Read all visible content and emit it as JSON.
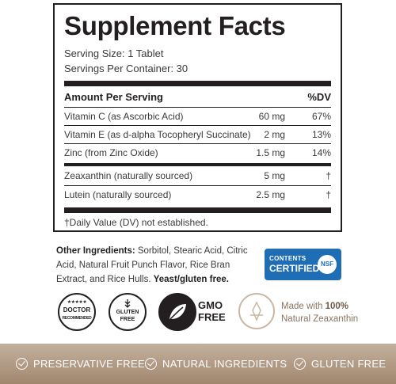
{
  "facts": {
    "title": "Supplement Facts",
    "serving_size": "Serving Size: 1 Tablet",
    "servings_per_container": "Servings Per Container: 30",
    "amount_header": "Amount Per Serving",
    "dv_header": "%DV",
    "rows": [
      {
        "name": "Vitamin C (as Ascorbic Acid)",
        "amount": "60 mg",
        "dv": "67%"
      },
      {
        "name": "Vitamin E (as d-alpha Tocopheryl Succinate)",
        "amount": "2 mg",
        "dv": "13%"
      },
      {
        "name": "Zinc (from Zinc Oxide)",
        "amount": "1.5 mg",
        "dv": "14%"
      },
      {
        "name": "Zeaxanthin (naturally sourced)",
        "amount": "5 mg",
        "dv": "†"
      },
      {
        "name": "Lutein (naturally sourced)",
        "amount": "2.5 mg",
        "dv": "†"
      }
    ],
    "footnote": "†Daily Value (DV) not established."
  },
  "other_ingredients": {
    "label": "Other Ingredients:",
    "text": " Sorbitol, Stearic Acid, Citric Acid, Natural Fruit Punch Flavor, Rice Bran Extract, and Rice Hulls. ",
    "bold_note": "Yeast/gluten free."
  },
  "nsf": {
    "line1": "CONTENTS",
    "line2": "CERTIFIED",
    "logo": "NSF"
  },
  "badges": {
    "doctor": {
      "line1": "DOCTOR",
      "line2": "RECOMMENDED",
      "stars": "★★★★★"
    },
    "gluten": {
      "line1": "GLUTEN",
      "line2": "FREE"
    },
    "gmo": {
      "line1": "GMO",
      "line2": "FREE"
    },
    "zeaxanthin": {
      "prefix": "Made with ",
      "pct": "100%",
      "line2": "Natural Zeaxanthin"
    }
  },
  "features": [
    "PRESERVATIVE FREE",
    "NATURAL INGREDIENTS",
    "GLUTEN FREE"
  ],
  "colors": {
    "ink": "#231f20",
    "nsf_blue": "#1f6db4",
    "band": "#a2876f"
  }
}
